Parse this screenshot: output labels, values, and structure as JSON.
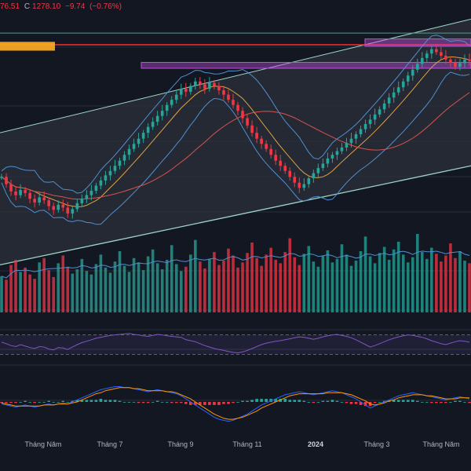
{
  "header": {
    "open_fragment": "76.51",
    "close_label": "C",
    "close_value": "1278.10",
    "change": "−9.74",
    "change_pct": "(−0.76%)"
  },
  "colors": {
    "background": "#131722",
    "bull": "#26a69a",
    "bear": "#f23645",
    "bollinger": "#4f8fd1",
    "ema": "#e0a040",
    "ma200": "#d9534f",
    "channel_fill": "#2a2e39",
    "channel_line": "#9ed5c6",
    "resistance_red": "#ff2d2d",
    "zone_orange": "#f5a623",
    "zone_purple": "#c04fe0",
    "rsi": "#7e57c2",
    "macd_line": "#2962ff",
    "signal_line": "#ff9800"
  },
  "icons": {
    "none": ""
  },
  "chart_data": {
    "type": "candlestick",
    "title": "",
    "x_axis": {
      "ticks": [
        "Tháng Năm",
        "Tháng 7",
        "Tháng 9",
        "Tháng 11",
        "2024",
        "Tháng 3",
        "Tháng Năm"
      ],
      "bold_ticks": [
        "2024"
      ]
    },
    "price_series": [
      1120,
      1110,
      1100,
      1095,
      1102,
      1098,
      1090,
      1085,
      1092,
      1088,
      1080,
      1075,
      1082,
      1078,
      1070,
      1076,
      1084,
      1090,
      1095,
      1101,
      1108,
      1115,
      1122,
      1128,
      1135,
      1142,
      1150,
      1158,
      1165,
      1172,
      1180,
      1188,
      1195,
      1203,
      1210,
      1218,
      1225,
      1232,
      1240,
      1236,
      1244,
      1250,
      1246,
      1240,
      1248,
      1244,
      1238,
      1232,
      1225,
      1218,
      1210,
      1200,
      1190,
      1180,
      1172,
      1165,
      1158,
      1150,
      1142,
      1135,
      1128,
      1120,
      1112,
      1105,
      1110,
      1118,
      1125,
      1132,
      1138,
      1145,
      1150,
      1155,
      1160,
      1166,
      1172,
      1178,
      1185,
      1192,
      1198,
      1205,
      1212,
      1220,
      1228,
      1235,
      1242,
      1250,
      1258,
      1266,
      1274,
      1282,
      1288,
      1294,
      1290,
      1285,
      1280,
      1276,
      1270,
      1275,
      1280,
      1278
    ],
    "channel": {
      "upper_start": 1180,
      "upper_end": 1335,
      "lower_start": 1000,
      "lower_end": 1135
    },
    "horizontal_levels": [
      {
        "name": "resistance",
        "value": 1300
      },
      {
        "name": "upper-line",
        "value": 1316
      }
    ],
    "zones": [
      {
        "name": "orange-zone",
        "from": 1292,
        "to": 1304
      },
      {
        "name": "purple-zone-1",
        "from": 1268,
        "to": 1276
      },
      {
        "name": "purple-zone-2",
        "from": 1298,
        "to": 1308
      }
    ],
    "volume_series": [
      42,
      38,
      55,
      61,
      47,
      52,
      44,
      39,
      58,
      63,
      49,
      41,
      57,
      66,
      53,
      45,
      50,
      62,
      48,
      44,
      56,
      67,
      52,
      46,
      59,
      71,
      54,
      47,
      63,
      58,
      49,
      65,
      73,
      57,
      50,
      61,
      78,
      56,
      48,
      53,
      67,
      84,
      59,
      51,
      62,
      70,
      55,
      60,
      74,
      66,
      52,
      58,
      69,
      81,
      63,
      54,
      67,
      75,
      61,
      57,
      70,
      86,
      64,
      55,
      68,
      77,
      59,
      53,
      66,
      72,
      58,
      62,
      79,
      67,
      54,
      60,
      71,
      88,
      65,
      57,
      69,
      76,
      61,
      73,
      82,
      67,
      58,
      64,
      91,
      70,
      62,
      75,
      68,
      59,
      66,
      80,
      63,
      71,
      60,
      57
    ],
    "rsi_series": [
      55,
      52,
      48,
      46,
      50,
      47,
      44,
      42,
      46,
      45,
      41,
      39,
      44,
      43,
      40,
      45,
      50,
      54,
      57,
      60,
      63,
      65,
      67,
      69,
      70,
      71,
      72,
      73,
      71,
      70,
      68,
      67,
      69,
      71,
      70,
      68,
      67,
      66,
      65,
      60,
      58,
      56,
      52,
      48,
      45,
      42,
      40,
      38,
      36,
      34,
      33,
      35,
      38,
      42,
      46,
      50,
      53,
      55,
      57,
      58,
      60,
      62,
      64,
      66,
      65,
      63,
      61,
      63,
      66,
      68,
      70,
      71,
      69,
      67,
      64,
      60,
      55,
      50,
      45,
      48,
      52,
      56,
      60,
      63,
      66,
      68,
      70,
      69,
      67,
      65,
      62,
      58,
      55,
      52,
      50,
      53,
      56,
      58,
      57,
      55
    ],
    "rsi_levels": [
      70,
      30
    ],
    "macd_series": [
      -2,
      -3,
      -4,
      -5,
      -4,
      -3,
      -4,
      -5,
      -4,
      -3,
      -2,
      -3,
      -2,
      -1,
      -2,
      0,
      2,
      4,
      6,
      8,
      10,
      12,
      13,
      14,
      15,
      15,
      14,
      14,
      13,
      12,
      11,
      10,
      11,
      12,
      11,
      10,
      9,
      8,
      6,
      3,
      0,
      -3,
      -6,
      -9,
      -12,
      -15,
      -17,
      -18,
      -19,
      -18,
      -16,
      -14,
      -12,
      -9,
      -6,
      -3,
      -1,
      1,
      3,
      5,
      7,
      8,
      9,
      10,
      9,
      8,
      7,
      8,
      9,
      10,
      11,
      10,
      9,
      7,
      5,
      3,
      0,
      -3,
      -6,
      -4,
      -2,
      0,
      2,
      4,
      6,
      7,
      8,
      9,
      8,
      7,
      6,
      5,
      4,
      3,
      2,
      3,
      4,
      5,
      4,
      3
    ],
    "signal_series": [
      -1,
      -2,
      -3,
      -4,
      -4,
      -4,
      -4,
      -4,
      -4,
      -3,
      -3,
      -3,
      -2,
      -2,
      -2,
      -1,
      0,
      2,
      4,
      6,
      8,
      9,
      11,
      12,
      13,
      14,
      14,
      14,
      13,
      13,
      12,
      11,
      11,
      11,
      11,
      10,
      10,
      9,
      7,
      5,
      3,
      0,
      -3,
      -6,
      -9,
      -12,
      -14,
      -16,
      -17,
      -17,
      -16,
      -15,
      -13,
      -11,
      -9,
      -6,
      -4,
      -2,
      0,
      2,
      4,
      6,
      7,
      8,
      8,
      8,
      8,
      8,
      8,
      9,
      9,
      9,
      9,
      8,
      7,
      5,
      3,
      1,
      -2,
      -3,
      -2,
      -1,
      1,
      2,
      4,
      5,
      6,
      7,
      7,
      7,
      6,
      6,
      5,
      4,
      3,
      3,
      3,
      4,
      4,
      4
    ]
  }
}
